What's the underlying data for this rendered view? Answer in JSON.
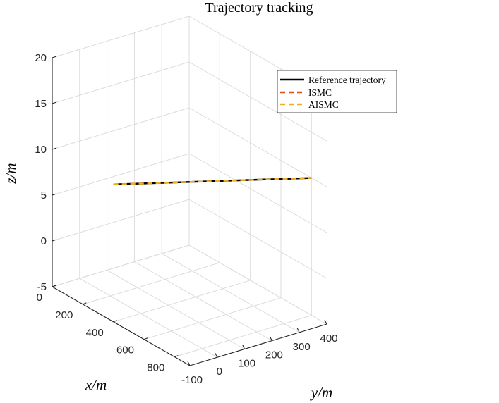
{
  "chart_data": {
    "type": "line3d",
    "title": "Trajectory tracking",
    "xlabel": "x/m",
    "ylabel": "y/m",
    "zlabel": "z/m",
    "xlim": [
      0,
      900
    ],
    "ylim": [
      -100,
      400
    ],
    "zlim": [
      -5,
      20
    ],
    "xticks": [
      "0",
      "200",
      "400",
      "600",
      "800"
    ],
    "yticks": [
      "-100",
      "0",
      "100",
      "200",
      "300",
      "400"
    ],
    "zticks": [
      "-5",
      "0",
      "5",
      "10",
      "15",
      "20"
    ],
    "grid": true,
    "legend_position": "top-right",
    "series": [
      {
        "name": "Reference trajectory",
        "color": "#000000",
        "dash": "solid",
        "x": [
          400,
          800
        ],
        "y": [
          -100,
          400
        ],
        "z": [
          10,
          10
        ]
      },
      {
        "name": "ISMC",
        "color": "#D95319",
        "dash": "dashed",
        "x": [
          400,
          800
        ],
        "y": [
          -100,
          400
        ],
        "z": [
          10,
          10
        ]
      },
      {
        "name": "AISMC",
        "color": "#EDB120",
        "dash": "dashed",
        "x": [
          400,
          800
        ],
        "y": [
          -100,
          400
        ],
        "z": [
          10,
          10
        ]
      }
    ]
  }
}
